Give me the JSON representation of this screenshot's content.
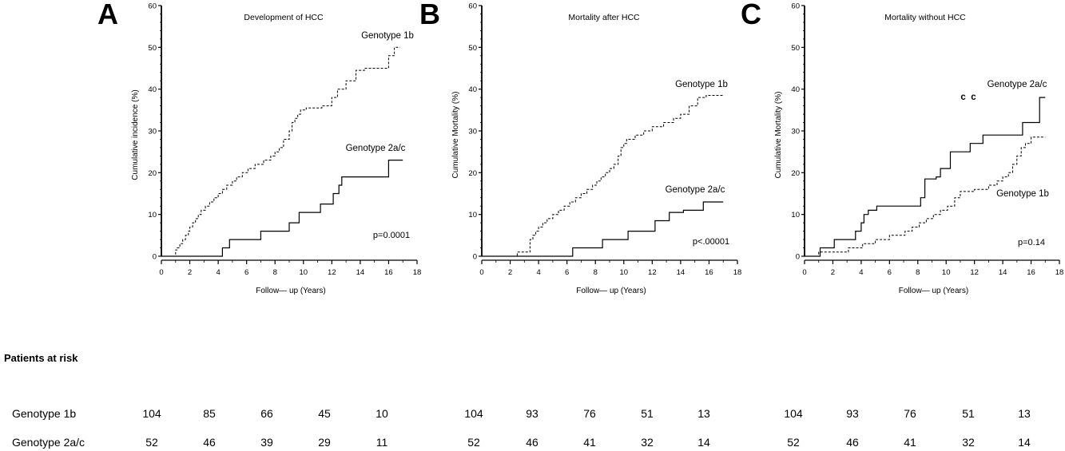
{
  "chart_data": [
    {
      "panel": "A",
      "type": "line",
      "title": "Development of HCC",
      "xlabel": "Follow— up (Years)",
      "ylabel": "Cumulative incidence (%)",
      "xlim": [
        0,
        18
      ],
      "ylim": [
        0,
        60
      ],
      "xticks": [
        0,
        2,
        4,
        6,
        8,
        10,
        12,
        14,
        16,
        18
      ],
      "yticks": [
        0,
        10,
        20,
        30,
        40,
        50,
        60
      ],
      "pvalue": "p=0.0001",
      "series": [
        {
          "name": "Genotype 1b",
          "style": "dashed",
          "x": [
            0,
            1.0,
            1.1,
            1.3,
            1.5,
            1.7,
            1.9,
            2.0,
            2.2,
            2.4,
            2.6,
            2.8,
            3.1,
            3.4,
            3.7,
            4.0,
            4.3,
            4.6,
            5.0,
            5.3,
            5.7,
            6.1,
            6.6,
            7.2,
            7.7,
            8.0,
            8.3,
            8.6,
            9.0,
            9.2,
            9.4,
            9.6,
            9.8,
            10.2,
            11.3,
            12.0,
            12.4,
            13.0,
            13.7,
            14.3,
            16.0,
            16.4,
            16.8
          ],
          "y": [
            0,
            1.5,
            2,
            3,
            4,
            5,
            6,
            7,
            8,
            9,
            10,
            11,
            12,
            13,
            14,
            15,
            16,
            17,
            18,
            19,
            20,
            21,
            22,
            23,
            24,
            25,
            26,
            28,
            30,
            32,
            33,
            34,
            35,
            35.5,
            36,
            38,
            40,
            42,
            44.5,
            45,
            48,
            50,
            50
          ]
        },
        {
          "name": "Genotype 2a/c",
          "style": "solid",
          "x": [
            0,
            4.3,
            4.8,
            7.0,
            9.0,
            9.7,
            11.2,
            12.1,
            12.5,
            12.7,
            16.0,
            17.0
          ],
          "y": [
            0,
            2,
            4,
            6,
            8,
            10.5,
            12.5,
            15,
            17,
            19,
            23,
            23
          ]
        }
      ]
    },
    {
      "panel": "B",
      "type": "line",
      "title": "Mortality after HCC",
      "xlabel": "Follow— up (Years)",
      "ylabel": "Cumulative Mortality (%)",
      "xlim": [
        0,
        18
      ],
      "ylim": [
        0,
        60
      ],
      "xticks": [
        0,
        2,
        4,
        6,
        8,
        10,
        12,
        14,
        16,
        18
      ],
      "yticks": [
        0,
        10,
        20,
        30,
        40,
        50,
        60
      ],
      "pvalue": "p<.00001",
      "series": [
        {
          "name": "Genotype 1b",
          "style": "dashed",
          "x": [
            0,
            2.5,
            3.4,
            3.6,
            3.8,
            4.0,
            4.3,
            4.6,
            5.0,
            5.4,
            5.8,
            6.2,
            6.6,
            7.0,
            7.4,
            7.8,
            8.1,
            8.4,
            8.7,
            9.0,
            9.3,
            9.6,
            9.8,
            10.0,
            10.2,
            10.8,
            11.4,
            12.0,
            12.8,
            13.5,
            14.0,
            14.6,
            15.2,
            15.8,
            17.0
          ],
          "y": [
            0,
            1,
            4,
            5,
            6,
            7,
            8,
            9,
            10,
            11,
            12,
            13,
            14,
            15,
            16,
            17,
            18,
            19,
            20,
            21,
            22,
            24,
            26,
            27,
            28,
            29,
            30,
            31,
            32,
            33,
            34,
            36,
            38,
            38.5,
            38.5
          ]
        },
        {
          "name": "Genotype 2a/c",
          "style": "solid",
          "x": [
            0,
            6.4,
            8.5,
            10.3,
            12.2,
            13.2,
            14.2,
            15.6,
            17.0
          ],
          "y": [
            0,
            2,
            4,
            6,
            8.5,
            10.5,
            11,
            13,
            13
          ]
        }
      ]
    },
    {
      "panel": "C",
      "type": "line",
      "title": "Mortality without HCC",
      "xlabel": "Follow— up (Years)",
      "ylabel": "Cumulative Mortality (%)",
      "xlim": [
        0,
        18
      ],
      "ylim": [
        0,
        60
      ],
      "xticks": [
        0,
        2,
        4,
        6,
        8,
        10,
        12,
        14,
        16,
        18
      ],
      "yticks": [
        0,
        10,
        20,
        30,
        40,
        50,
        60
      ],
      "pvalue": "p=0.14",
      "extra_text": "c  c",
      "series": [
        {
          "name": "Genotype 2a/c",
          "style": "solid",
          "x": [
            0,
            1.1,
            2.1,
            3.6,
            4.0,
            4.2,
            4.5,
            5.1,
            6.2,
            8.2,
            8.5,
            9.3,
            9.6,
            10.3,
            11.7,
            12.6,
            15.4,
            16.6,
            17.0
          ],
          "y": [
            0,
            2,
            4,
            6,
            8,
            10,
            11,
            12,
            12,
            14,
            18.5,
            19,
            21,
            25,
            27,
            29,
            32,
            38,
            38
          ]
        },
        {
          "name": "Genotype 1b",
          "style": "dashed",
          "x": [
            0,
            1.0,
            3.1,
            4.1,
            5.0,
            6.0,
            7.1,
            7.6,
            8.1,
            8.6,
            9.1,
            9.6,
            10.1,
            10.6,
            11.0,
            12.0,
            13.0,
            13.6,
            14.0,
            14.4,
            14.7,
            15.0,
            15.3,
            15.6,
            16.0,
            17.0
          ],
          "y": [
            0,
            1,
            2,
            3,
            4,
            5,
            6,
            7,
            8,
            9,
            10,
            11,
            12,
            14,
            15.5,
            16,
            17,
            18,
            19,
            20,
            22,
            24,
            26,
            27,
            28.5,
            28.5
          ]
        }
      ]
    }
  ],
  "risk": {
    "heading": "Patients at risk",
    "rows": [
      {
        "label": "Genotype 1b",
        "values": [
          104,
          85,
          66,
          45,
          10,
          104,
          93,
          76,
          51,
          13,
          104,
          93,
          76,
          51,
          13
        ]
      },
      {
        "label": "Genotype 2a/c",
        "values": [
          52,
          46,
          39,
          29,
          11,
          52,
          46,
          41,
          32,
          14,
          52,
          46,
          41,
          32,
          14
        ]
      }
    ]
  }
}
